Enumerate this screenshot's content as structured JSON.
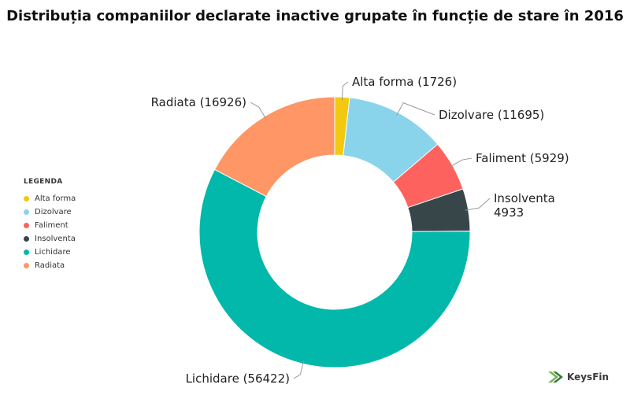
{
  "title": "Distribuția companiilor declarate inactive grupate în funcție de stare în 2016",
  "legend": {
    "title": "LEGENDA",
    "placement": "left",
    "items": [
      {
        "label": "Alta forma",
        "color": "#F2C811"
      },
      {
        "label": "Dizolvare",
        "color": "#8AD4EB"
      },
      {
        "label": "Faliment",
        "color": "#FD625E"
      },
      {
        "label": "Insolventa",
        "color": "#374649"
      },
      {
        "label": "Lichidare",
        "color": "#01B8AA"
      },
      {
        "label": "Radiata",
        "color": "#FE9666"
      }
    ]
  },
  "chart_data": {
    "type": "pie",
    "subtype": "donut",
    "title": "Distribuția companiilor declarate inactive grupate în funcție de stare în 2016",
    "slices": [
      {
        "label": "Alta forma",
        "value": 1726,
        "color": "#F2C811",
        "display": [
          "Alta forma (1726)"
        ]
      },
      {
        "label": "Dizolvare",
        "value": 11695,
        "color": "#8AD4EB",
        "display": [
          "Dizolvare (11695)"
        ]
      },
      {
        "label": "Faliment",
        "value": 5929,
        "color": "#FD625E",
        "display": [
          "Faliment (5929)"
        ]
      },
      {
        "label": "Insolventa",
        "value": 4933,
        "color": "#374649",
        "display": [
          "Insolventa",
          "4933"
        ]
      },
      {
        "label": "Lichidare",
        "value": 56422,
        "color": "#01B8AA",
        "display": [
          "Lichidare (56422)"
        ]
      },
      {
        "label": "Radiata",
        "value": 16926,
        "color": "#FE9666",
        "display": [
          "Radiata (16926)"
        ]
      }
    ]
  },
  "logo": {
    "text": "KeysFin",
    "icon": "keysfin-logo-icon",
    "color": "#4a9a4a"
  }
}
